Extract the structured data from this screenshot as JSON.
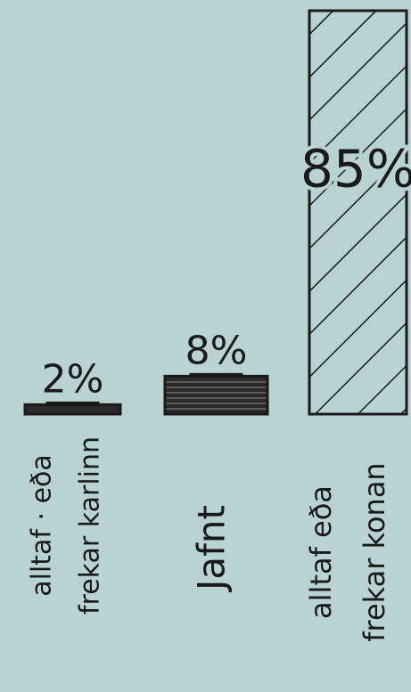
{
  "chart_data": {
    "type": "bar",
    "categories": [
      [
        "alltaf · eða",
        "frekar karlinn"
      ],
      [
        "Jafnt"
      ],
      [
        "alltaf eða",
        "frekar konan"
      ]
    ],
    "values": [
      2,
      8,
      85
    ],
    "value_labels": [
      "2%",
      "8%",
      "85%"
    ]
  }
}
